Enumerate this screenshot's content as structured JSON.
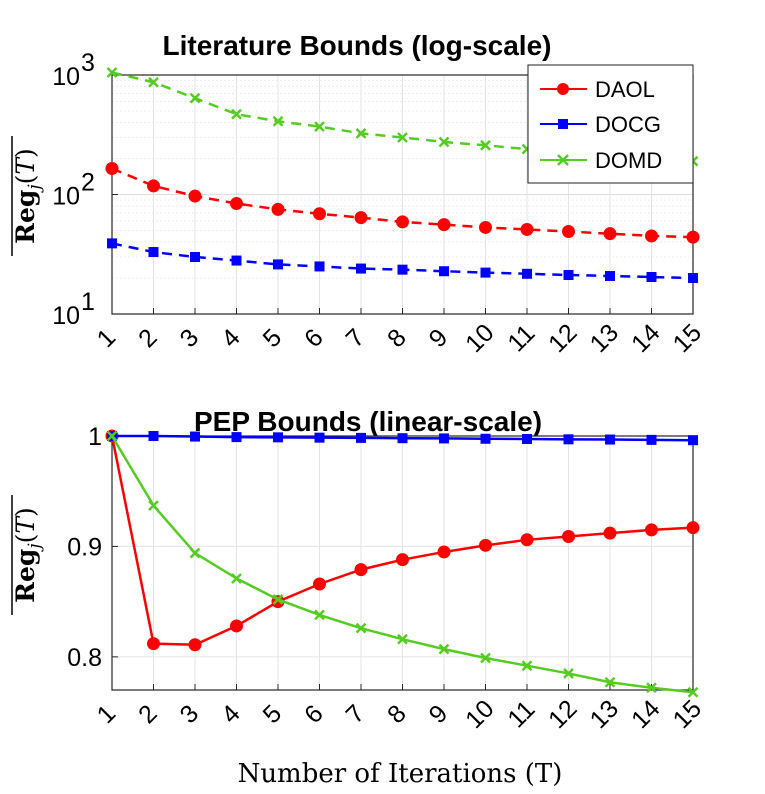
{
  "chart_data": [
    {
      "type": "line",
      "title": "Literature Bounds (log-scale)",
      "yscale": "log",
      "ylabel": "Reg_j(T)",
      "xlabel": "",
      "x": [
        1,
        2,
        3,
        4,
        5,
        6,
        7,
        8,
        9,
        10,
        11,
        12,
        13,
        14,
        15
      ],
      "xtick_labels": [
        "1",
        "2",
        "3",
        "4",
        "5",
        "6",
        "7",
        "8",
        "9",
        "10",
        "11",
        "12",
        "13",
        "14",
        "15"
      ],
      "ylim": [
        10,
        1000
      ],
      "ytick_labels": [
        {
          "base": "10",
          "exp": "1",
          "value": 10
        },
        {
          "base": "10",
          "exp": "2",
          "value": 100
        },
        {
          "base": "10",
          "exp": "3",
          "value": 1000
        }
      ],
      "grid": true,
      "legend_position": "top-right",
      "series": [
        {
          "name": "DAOL",
          "color": "#ff0000",
          "marker": "circle",
          "linestyle": "dashed",
          "values": [
            165,
            118,
            97,
            84,
            75,
            69,
            64,
            59,
            56,
            53,
            51,
            49,
            47,
            45,
            44
          ]
        },
        {
          "name": "DOCG",
          "color": "#0000ff",
          "marker": "square",
          "linestyle": "dashed",
          "values": [
            39,
            33,
            30,
            28,
            26,
            25,
            24,
            23.5,
            22.8,
            22.2,
            21.7,
            21.2,
            20.8,
            20.4,
            20
          ]
        },
        {
          "name": "DOMD",
          "color": "#55cc22",
          "marker": "x",
          "linestyle": "dashed",
          "values": [
            1050,
            870,
            640,
            470,
            410,
            370,
            325,
            300,
            275,
            258,
            240,
            228,
            215,
            200,
            190
          ]
        }
      ]
    },
    {
      "type": "line",
      "title": "PEP Bounds (linear-scale)",
      "yscale": "linear",
      "ylabel": "Reg_j(T)",
      "xlabel": "Number of Iterations (T)",
      "x": [
        1,
        2,
        3,
        4,
        5,
        6,
        7,
        8,
        9,
        10,
        11,
        12,
        13,
        14,
        15
      ],
      "xtick_labels": [
        "1",
        "2",
        "3",
        "4",
        "5",
        "6",
        "7",
        "8",
        "9",
        "10",
        "11",
        "12",
        "13",
        "14",
        "15"
      ],
      "ylim": [
        0.77,
        1.0
      ],
      "ytick_labels": [
        "0.8",
        "0.9",
        "1"
      ],
      "ytick_values": [
        0.8,
        0.9,
        1.0
      ],
      "grid": true,
      "series": [
        {
          "name": "DAOL",
          "color": "#ff0000",
          "marker": "circle",
          "linestyle": "solid",
          "values": [
            1.0,
            0.812,
            0.811,
            0.828,
            0.85,
            0.866,
            0.879,
            0.888,
            0.895,
            0.901,
            0.906,
            0.909,
            0.912,
            0.915,
            0.917
          ]
        },
        {
          "name": "DOCG",
          "color": "#0000ff",
          "marker": "square",
          "linestyle": "solid",
          "values": [
            1.0,
            1.0,
            0.9995,
            0.999,
            0.9988,
            0.9985,
            0.9983,
            0.998,
            0.9978,
            0.9975,
            0.9973,
            0.997,
            0.9968,
            0.9965,
            0.9962
          ]
        },
        {
          "name": "DOMD",
          "color": "#55cc22",
          "marker": "x",
          "linestyle": "solid",
          "values": [
            1.0,
            0.937,
            0.894,
            0.871,
            0.852,
            0.838,
            0.826,
            0.816,
            0.807,
            0.799,
            0.792,
            0.785,
            0.777,
            0.772,
            0.768
          ]
        }
      ]
    }
  ]
}
